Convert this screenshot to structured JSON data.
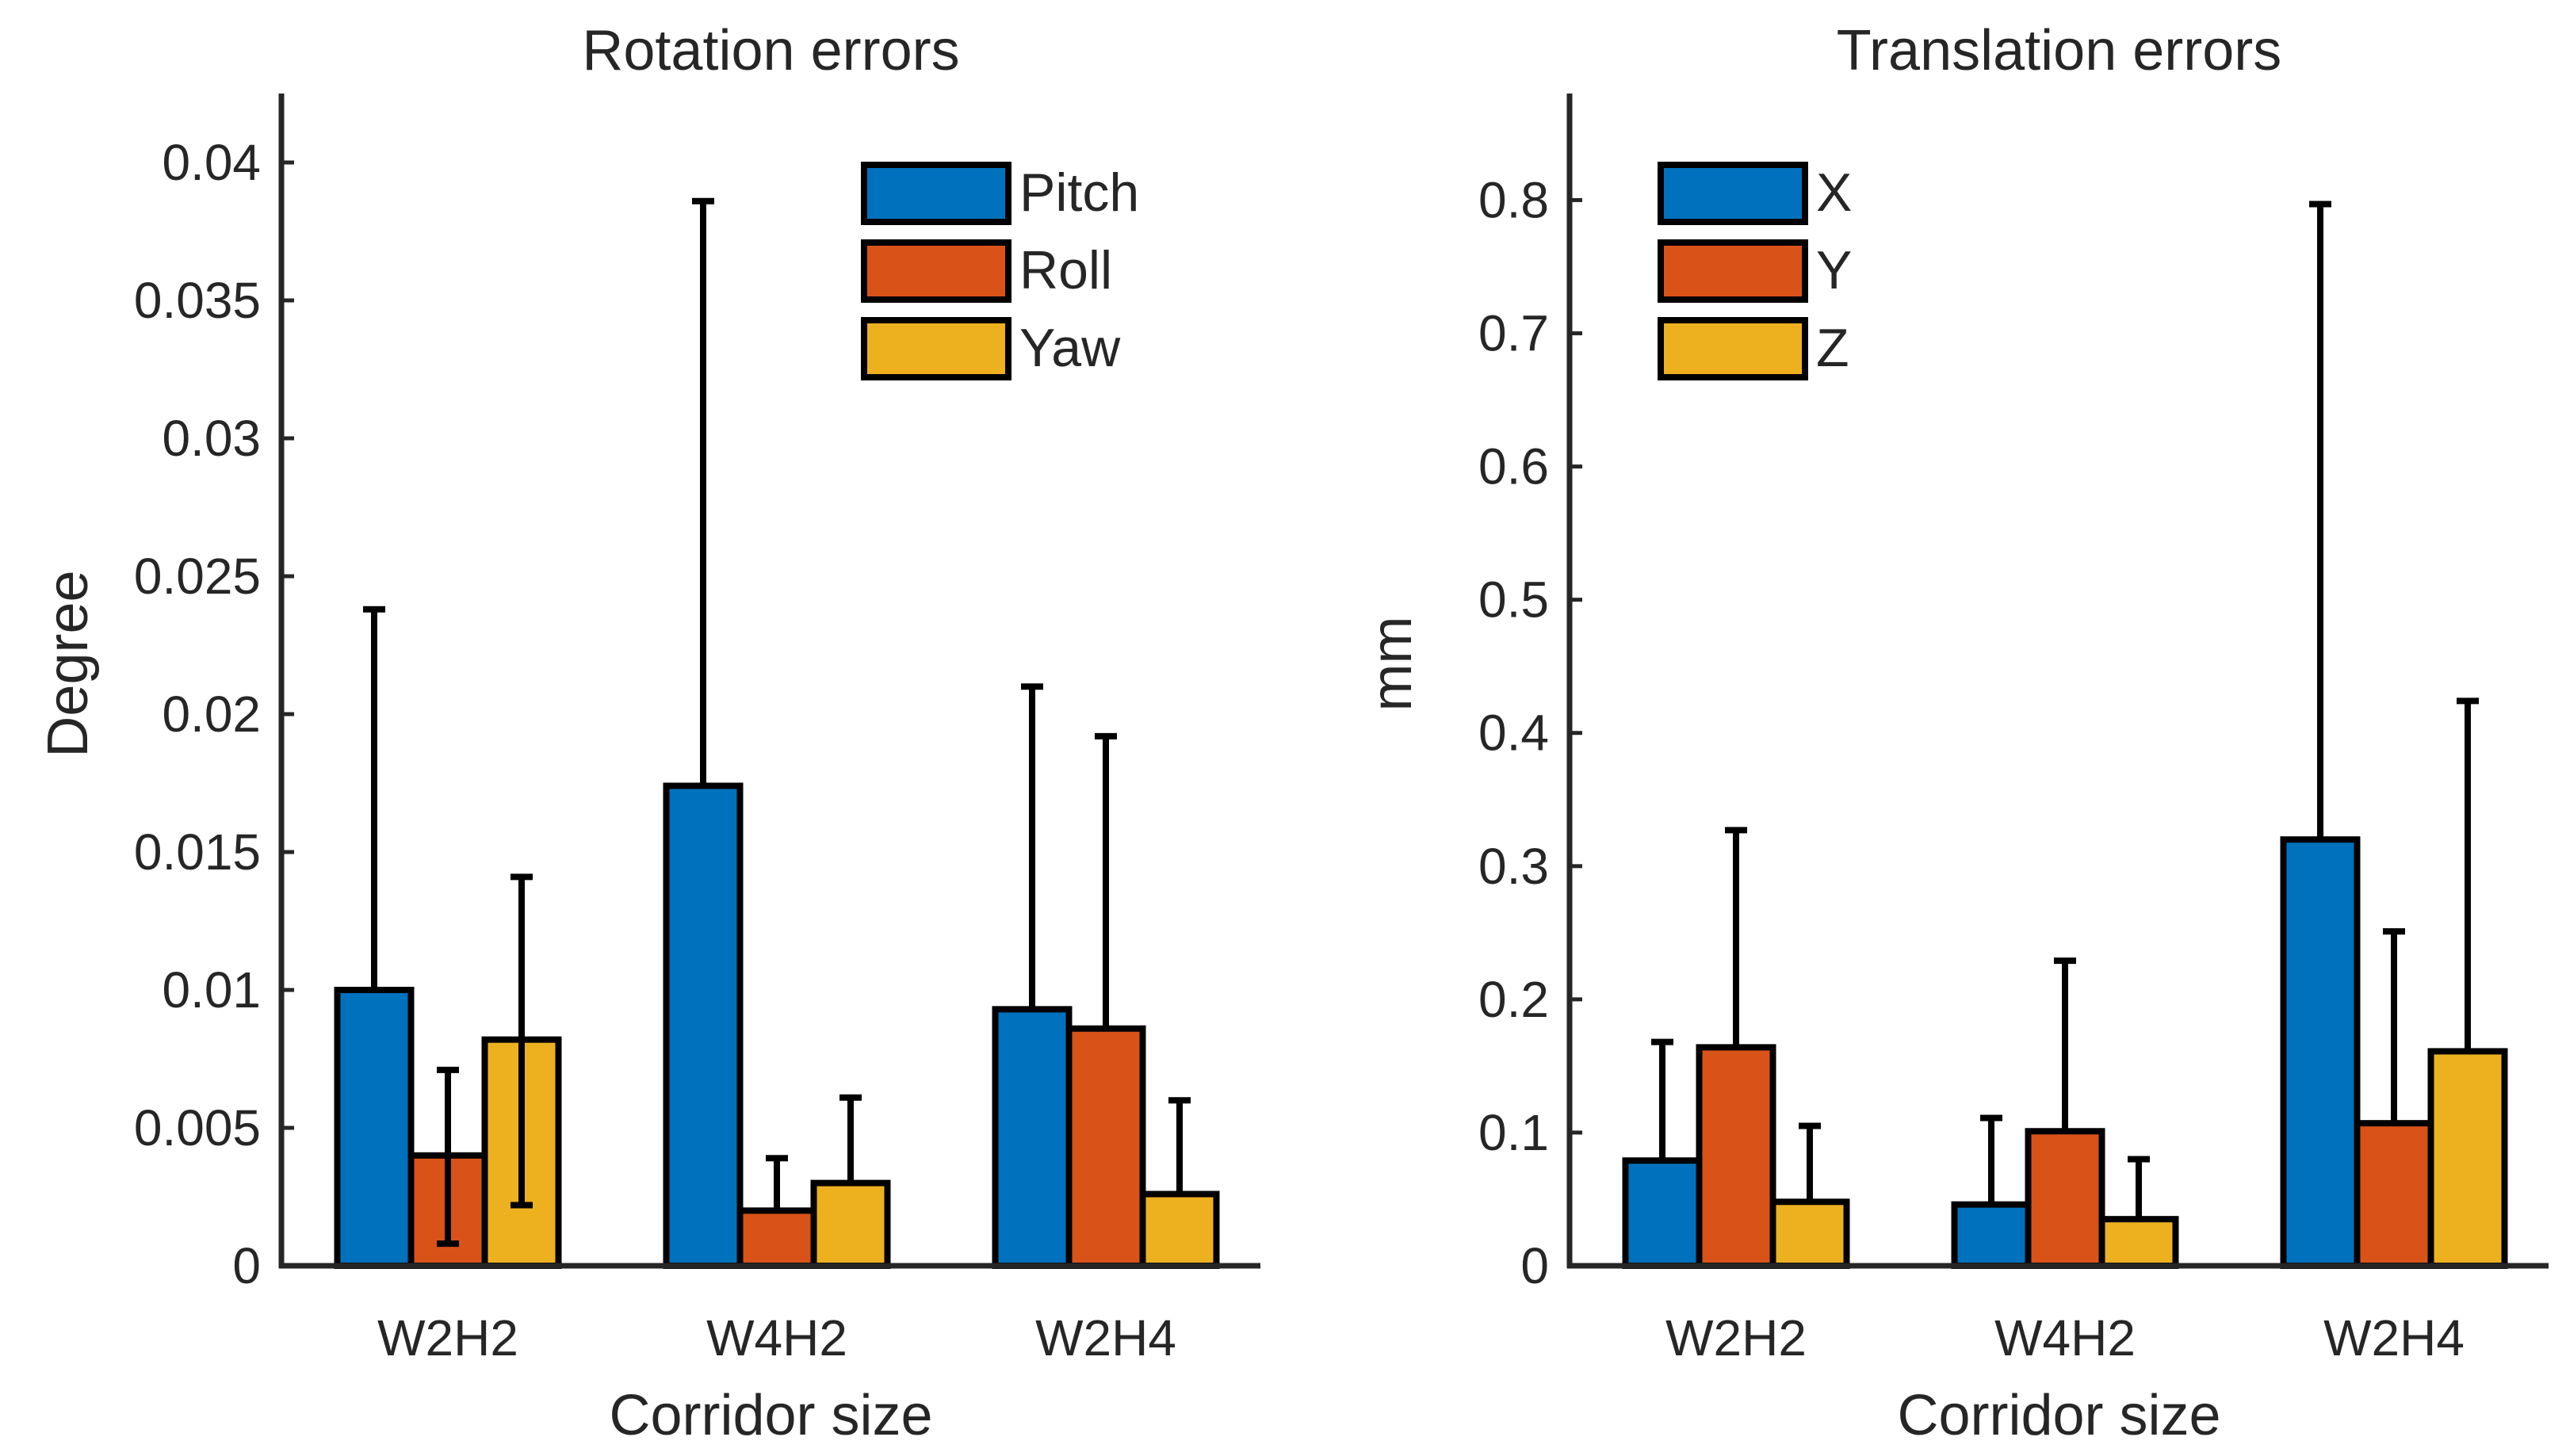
{
  "chart_data": [
    {
      "type": "bar",
      "title": "Rotation errors",
      "xlabel": "Corridor size",
      "ylabel": "Degree",
      "ylim": [
        0,
        0.0425
      ],
      "yticks": [
        "0",
        "0.005",
        "0.01",
        "0.015",
        "0.02",
        "0.025",
        "0.03",
        "0.035",
        "0.04"
      ],
      "categories": [
        "W2H2",
        "W4H2",
        "W2H4"
      ],
      "legend_position": "top-right",
      "series": [
        {
          "name": "Pitch",
          "color": "#0072BD",
          "values": [
            0.01,
            0.0174,
            0.0093
          ],
          "error_upper": [
            0.0238,
            0.0386,
            0.021
          ]
        },
        {
          "name": "Roll",
          "color": "#D95319",
          "values": [
            0.004,
            0.002,
            0.0086
          ],
          "error_upper": [
            0.0071,
            0.0039,
            0.0192
          ]
        },
        {
          "name": "Yaw",
          "color": "#EDB120",
          "values": [
            0.0082,
            0.003,
            0.0026
          ],
          "error_upper": [
            0.0141,
            0.0061,
            0.006
          ]
        }
      ],
      "error_lower": [
        [
          0.01,
          0.0174,
          0.0093
        ],
        [
          0.0008,
          0.002,
          0.0086
        ],
        [
          0.0022,
          0.003,
          0.0026
        ]
      ]
    },
    {
      "type": "bar",
      "title": "Translation errors",
      "xlabel": "Corridor size",
      "ylabel": "mm",
      "ylim": [
        0,
        0.88
      ],
      "yticks": [
        "0",
        "0.1",
        "0.2",
        "0.3",
        "0.4",
        "0.5",
        "0.6",
        "0.7",
        "0.8"
      ],
      "categories": [
        "W2H2",
        "W4H2",
        "W2H4"
      ],
      "legend_position": "top-left",
      "series": [
        {
          "name": "X",
          "color": "#0072BD",
          "values": [
            0.079,
            0.046,
            0.32
          ],
          "error_upper": [
            0.168,
            0.111,
            0.797
          ]
        },
        {
          "name": "Y",
          "color": "#D95319",
          "values": [
            0.164,
            0.101,
            0.107
          ],
          "error_upper": [
            0.327,
            0.229,
            0.251
          ]
        },
        {
          "name": "Z",
          "color": "#EDB120",
          "values": [
            0.048,
            0.035,
            0.161
          ],
          "error_upper": [
            0.105,
            0.08,
            0.424
          ]
        }
      ]
    }
  ]
}
